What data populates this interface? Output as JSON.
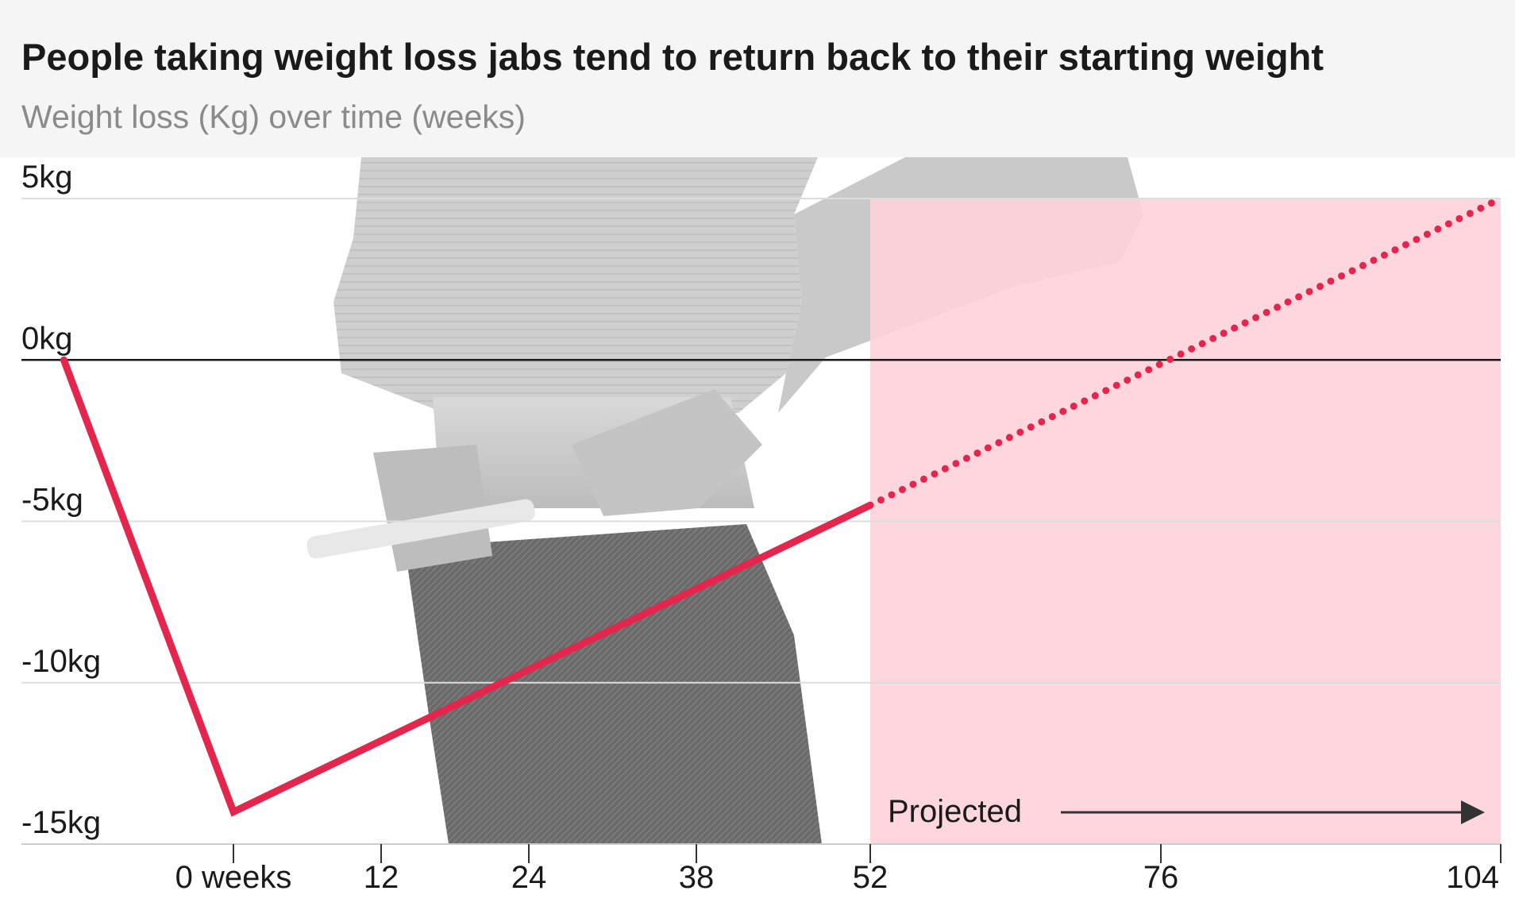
{
  "header": {
    "title": "People taking weight loss jabs tend to return back to their starting weight",
    "subtitle": "Weight loss (Kg) over time (weeks)"
  },
  "chart_data": {
    "type": "line",
    "title": "People taking weight loss jabs tend to return back to their starting weight",
    "subtitle": "Weight loss (Kg) over time (weeks)",
    "x_ticks": [
      {
        "value": 0,
        "label": "0 weeks"
      },
      {
        "value": 12,
        "label": "12"
      },
      {
        "value": 24,
        "label": "24"
      },
      {
        "value": 38,
        "label": "38"
      },
      {
        "value": 52,
        "label": "52"
      },
      {
        "value": 76,
        "label": "76"
      },
      {
        "value": 104,
        "label": "104"
      }
    ],
    "y_ticks": [
      {
        "value": 5,
        "label": "5kg"
      },
      {
        "value": 0,
        "label": "0kg"
      },
      {
        "value": -5,
        "label": "-5kg"
      },
      {
        "value": -10,
        "label": "-10kg"
      },
      {
        "value": -15,
        "label": "-15kg"
      }
    ],
    "xlim": [
      -10,
      104
    ],
    "ylim": [
      -15,
      5
    ],
    "grid": true,
    "series": [
      {
        "style": "solid",
        "x": [
          -8,
          0,
          52
        ],
        "y": [
          0,
          -14,
          -4.5
        ]
      },
      {
        "style": "dotted",
        "x": [
          52,
          104
        ],
        "y": [
          -4.5,
          5
        ]
      }
    ],
    "projection": {
      "x_start": 52,
      "x_end": 104,
      "label": "Projected"
    },
    "colors": {
      "line": "#e4264c",
      "projection_fill": "#fdd1da",
      "zero_line": "#1a1a1a",
      "grid": "#dddddd"
    }
  }
}
